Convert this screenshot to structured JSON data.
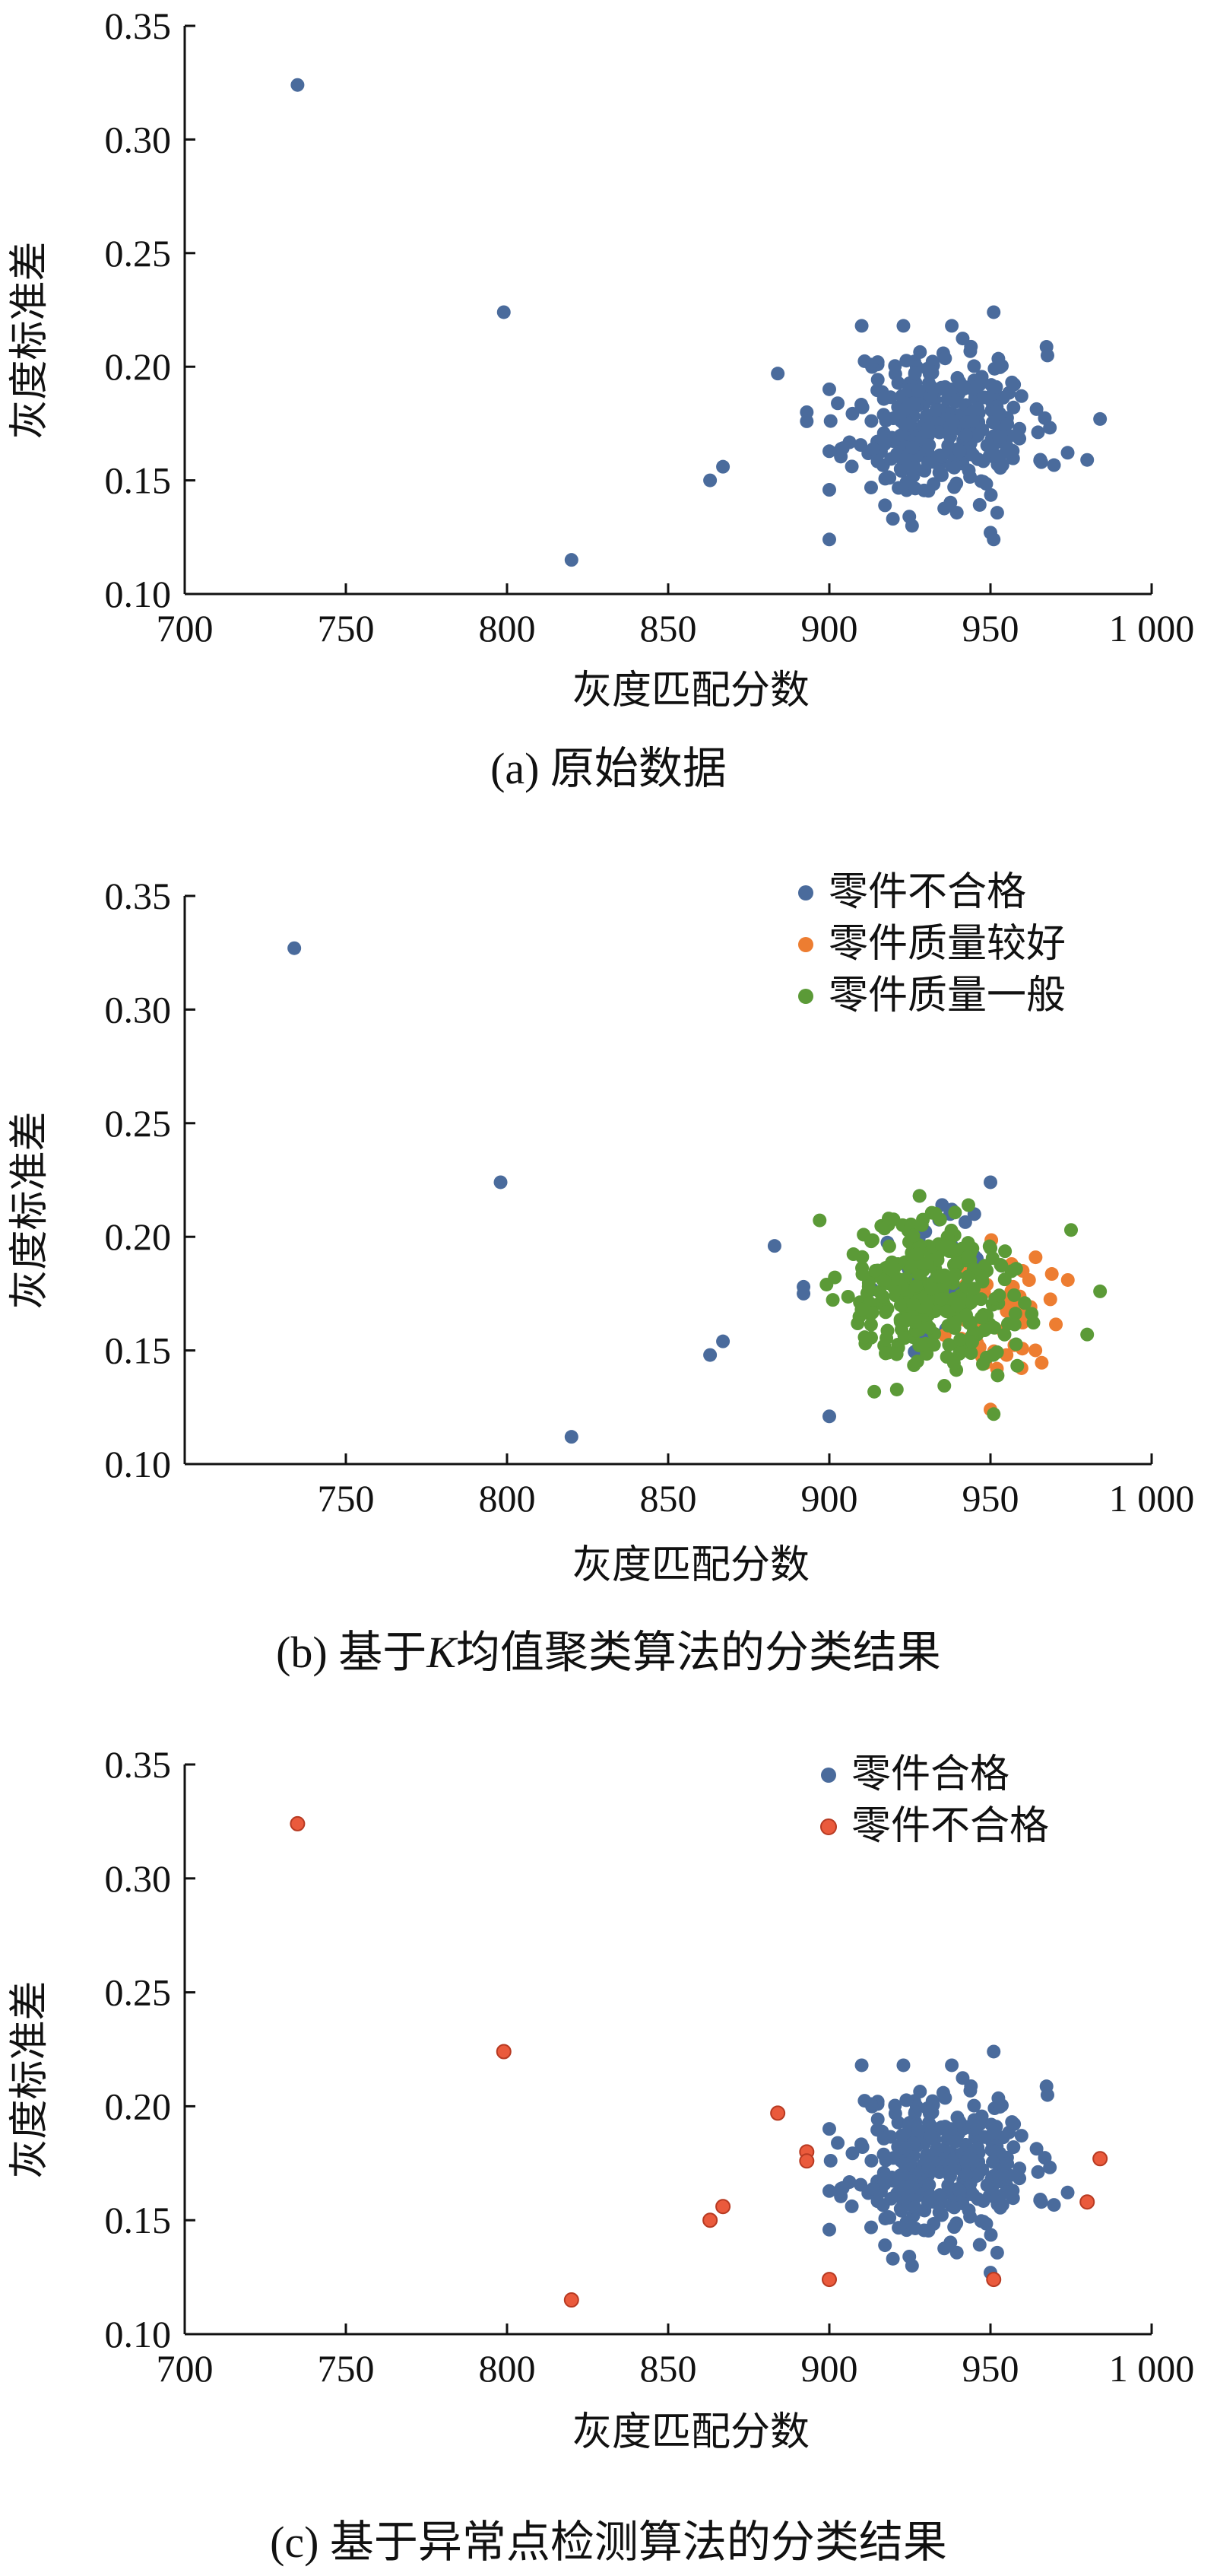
{
  "chart_data": [
    {
      "type": "scatter",
      "caption": "(a)  原始数据",
      "xlabel": "灰度匹配分数",
      "ylabel": "灰度标准差",
      "xlim": [
        700,
        1000
      ],
      "ylim": [
        0.1,
        0.35
      ],
      "xticks": [
        "700",
        "750",
        "800",
        "850",
        "900",
        "950",
        "1 000"
      ],
      "yticks": [
        "0.10",
        "0.15",
        "0.20",
        "0.25",
        "0.30",
        "0.35"
      ],
      "legend": null,
      "series": [
        {
          "color": "#4a6b9c",
          "points": [
            [
              735,
              0.324
            ],
            [
              799,
              0.224
            ],
            [
              820,
              0.115
            ],
            [
              863,
              0.15
            ],
            [
              867,
              0.156
            ],
            [
              884,
              0.197
            ],
            [
              893,
              0.18
            ],
            [
              893,
              0.176
            ],
            [
              900,
              0.124
            ],
            [
              951,
              0.124
            ],
            [
              950,
              0.127
            ],
            [
              951,
              0.224
            ],
            [
              984,
              0.177
            ],
            [
              980,
              0.159
            ]
          ],
          "cluster": {
            "cx": 935,
            "cy": 0.175,
            "sx": 14,
            "sy": 0.017,
            "n": 330,
            "seed": 11
          }
        }
      ]
    },
    {
      "type": "scatter",
      "caption_prefix": "(b)  基于",
      "caption_italic": "K",
      "caption_suffix": "均值聚类算法的分类结果",
      "xlabel": "灰度匹配分数",
      "ylabel": "灰度标准差",
      "xlim": [
        700,
        1000
      ],
      "ylim": [
        0.1,
        0.35
      ],
      "xticks": [
        "750",
        "800",
        "850",
        "900",
        "950",
        "1 000"
      ],
      "yticks": [
        "0.10",
        "0.15",
        "0.20",
        "0.25",
        "0.30",
        "0.35"
      ],
      "legend": [
        "零件不合格",
        "零件质量较好",
        "零件质量一般"
      ],
      "series": [
        {
          "name": "零件不合格",
          "color": "#4a6b9c",
          "points": [
            [
              734,
              0.327
            ],
            [
              798,
              0.224
            ],
            [
              820,
              0.112
            ],
            [
              863,
              0.148
            ],
            [
              867,
              0.154
            ],
            [
              883,
              0.196
            ],
            [
              892,
              0.178
            ],
            [
              892,
              0.175
            ],
            [
              900,
              0.121
            ],
            [
              950,
              0.224
            ],
            [
              938,
              0.212
            ],
            [
              945,
              0.21
            ],
            [
              928,
              0.218
            ],
            [
              935,
              0.214
            ],
            [
              942,
              0.195
            ]
          ],
          "cluster": {
            "cx": 935,
            "cy": 0.18,
            "sx": 8,
            "sy": 0.012,
            "n": 40,
            "seed": 23
          }
        },
        {
          "name": "零件质量较好",
          "color": "#ed7d31",
          "points": [
            [
              950,
              0.124
            ],
            [
              974,
              0.181
            ],
            [
              960,
              0.185
            ],
            [
              955,
              0.148
            ],
            [
              962,
              0.165
            ],
            [
              958,
              0.17
            ],
            [
              952,
              0.142
            ],
            [
              948,
              0.16
            ],
            [
              964,
              0.191
            ],
            [
              957,
              0.178
            ]
          ],
          "cluster": {
            "cx": 952,
            "cy": 0.167,
            "sx": 8,
            "sy": 0.013,
            "n": 45,
            "seed": 37
          }
        },
        {
          "name": "零件质量一般",
          "color": "#5b9a37",
          "points": [
            [
              951,
              0.122
            ],
            [
              984,
              0.176
            ],
            [
              980,
              0.157
            ],
            [
              975,
              0.203
            ],
            [
              910,
              0.168
            ],
            [
              913,
              0.198
            ]
          ],
          "cluster": {
            "cx": 932,
            "cy": 0.174,
            "sx": 13,
            "sy": 0.017,
            "n": 300,
            "seed": 51
          }
        }
      ]
    },
    {
      "type": "scatter",
      "caption": "(c)  基于异常点检测算法的分类结果",
      "xlabel": "灰度匹配分数",
      "ylabel": "灰度标准差",
      "xlim": [
        700,
        1000
      ],
      "ylim": [
        0.1,
        0.35
      ],
      "xticks": [
        "700",
        "750",
        "800",
        "850",
        "900",
        "950",
        "1 000"
      ],
      "yticks": [
        "0.10",
        "0.15",
        "0.20",
        "0.25",
        "0.30",
        "0.35"
      ],
      "legend": [
        "零件合格",
        "零件不合格"
      ],
      "series": [
        {
          "name": "零件合格",
          "color": "#4a6b9c",
          "points": [
            [
              951,
              0.224
            ],
            [
              950,
              0.127
            ]
          ],
          "cluster": {
            "cx": 935,
            "cy": 0.175,
            "sx": 14,
            "sy": 0.017,
            "n": 330,
            "seed": 11
          }
        },
        {
          "name": "零件不合格",
          "color": "#ea5a3c",
          "stroke": "#b73a22",
          "points": [
            [
              735,
              0.324
            ],
            [
              799,
              0.224
            ],
            [
              820,
              0.115
            ],
            [
              863,
              0.15
            ],
            [
              867,
              0.156
            ],
            [
              884,
              0.197
            ],
            [
              893,
              0.18
            ],
            [
              893,
              0.176
            ],
            [
              900,
              0.124
            ],
            [
              951,
              0.124
            ],
            [
              984,
              0.177
            ],
            [
              980,
              0.158
            ]
          ]
        }
      ]
    }
  ]
}
